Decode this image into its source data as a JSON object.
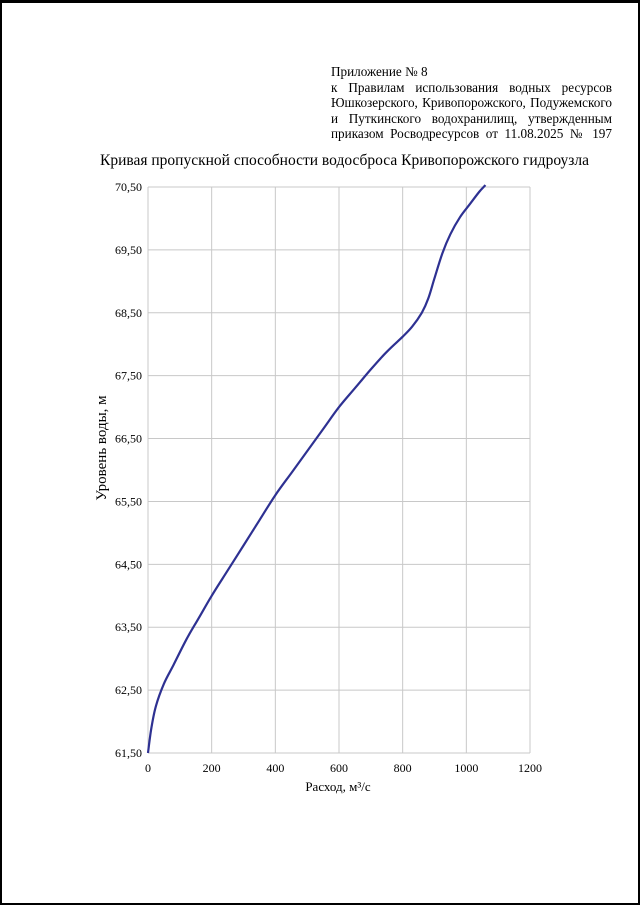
{
  "annex": {
    "line1": "Приложение № 8",
    "line2": "к Правилам использования водных ресурсов",
    "line3": "Юшкозерского, Кривопорожского, Подужемского",
    "line4": "и Путкинского водохранилищ, утвержденным",
    "line5": "приказом Росводресурсов от 11.08.2025 № 197"
  },
  "chart_data": {
    "type": "line",
    "title": "Кривая пропускной способности водосброса Кривопорожского гидроузла",
    "xlabel": "Расход, м³/с",
    "ylabel": "Уровень воды, м",
    "xlim": [
      0,
      1200
    ],
    "ylim": [
      61.5,
      70.5
    ],
    "x_ticks": [
      "0",
      "200",
      "400",
      "600",
      "800",
      "1000",
      "1200"
    ],
    "y_ticks": [
      "61,50",
      "62,50",
      "63,50",
      "64,50",
      "65,50",
      "66,50",
      "67,50",
      "68,50",
      "69,50",
      "70,50"
    ],
    "grid": true,
    "line_color": "#2e3192",
    "series": [
      {
        "x": [
          0,
          10,
          25,
          50,
          80,
          120,
          160,
          200,
          250,
          300,
          350,
          400,
          450,
          500,
          550,
          600,
          650,
          700,
          750,
          800,
          830,
          860,
          880,
          900,
          925,
          950,
          980,
          1010,
          1040,
          1060
        ],
        "y": [
          61.5,
          61.88,
          62.25,
          62.6,
          62.9,
          63.3,
          63.65,
          64.0,
          64.4,
          64.8,
          65.2,
          65.6,
          65.95,
          66.3,
          66.65,
          67.0,
          67.3,
          67.6,
          67.88,
          68.12,
          68.28,
          68.5,
          68.72,
          69.05,
          69.45,
          69.75,
          70.02,
          70.22,
          70.42,
          70.53
        ]
      }
    ]
  }
}
